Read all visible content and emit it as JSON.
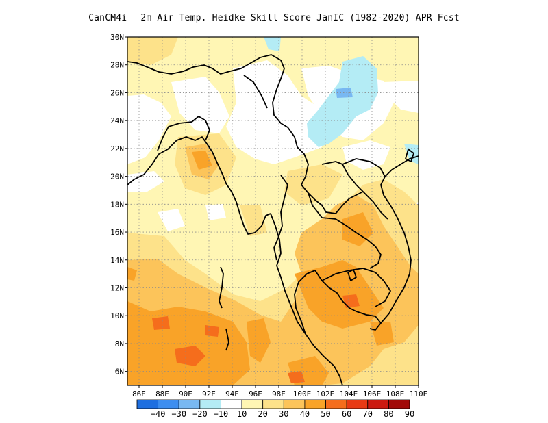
{
  "title": {
    "model": "CanCM4i",
    "variable": "2m Air Temp. Heidke Skill Score JanIC (1982-2020) APR Fcst"
  },
  "map": {
    "lon_range": [
      85,
      110
    ],
    "lat_range": [
      5,
      30
    ],
    "lon_ticks": [
      "86E",
      "88E",
      "90E",
      "92E",
      "94E",
      "96E",
      "98E",
      "100E",
      "102E",
      "104E",
      "106E",
      "108E",
      "110E"
    ],
    "lat_ticks": [
      "6N",
      "8N",
      "10N",
      "12N",
      "14N",
      "16N",
      "18N",
      "20N",
      "22N",
      "24N",
      "26N",
      "28N",
      "30N"
    ],
    "gridlines": "dotted"
  },
  "colorbar": {
    "labels": [
      "-40",
      "-30",
      "-20",
      "-10",
      "10",
      "20",
      "30",
      "40",
      "50",
      "60",
      "70",
      "80",
      "90"
    ],
    "colors": [
      "#1e6fe0",
      "#3d8ef0",
      "#78b8f2",
      "#b4ecf5",
      "#ffffff",
      "#fff6b4",
      "#fde28a",
      "#fcc45a",
      "#f9a328",
      "#f56d1c",
      "#e83a14",
      "#cc1a10",
      "#a20a08"
    ]
  },
  "fields": [
    {
      "level": "yellow",
      "color": "#fff6b4"
    },
    {
      "level": "light-orange",
      "color": "#fde28a"
    },
    {
      "level": "orange",
      "color": "#fcc45a"
    },
    {
      "level": "dark-orange",
      "color": "#f9a328"
    },
    {
      "level": "red-orange",
      "color": "#f56d1c"
    },
    {
      "level": "light-blue",
      "color": "#b4ecf5"
    },
    {
      "level": "blue",
      "color": "#78b8f2"
    }
  ]
}
